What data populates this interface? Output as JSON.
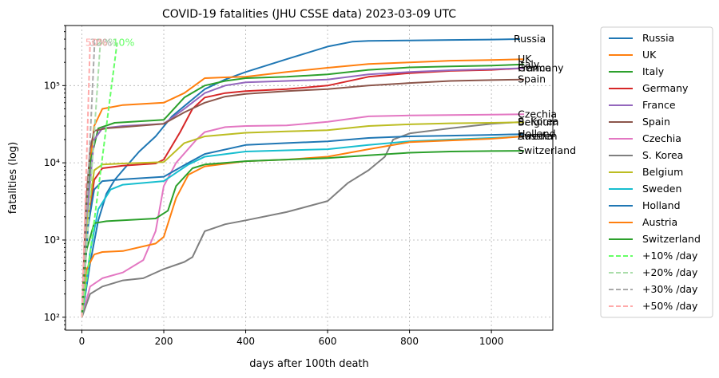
{
  "chart_data": {
    "type": "line",
    "title": "COVID-19 fatalities (JHU CSSE data) 2023-03-09 UTC",
    "xlabel": "days after 100th death",
    "ylabel": "fatalities (log)",
    "xlim": [
      -40,
      1150
    ],
    "ylim": [
      68,
      600000
    ],
    "yscale": "log",
    "grid": true,
    "legend_position": "outside-right",
    "x_ticks": [
      {
        "value": 0,
        "label": "0"
      },
      {
        "value": 200,
        "label": "200"
      },
      {
        "value": 400,
        "label": "400"
      },
      {
        "value": 600,
        "label": "600"
      },
      {
        "value": 800,
        "label": "800"
      },
      {
        "value": 1000,
        "label": "1000"
      }
    ],
    "y_ticks": [
      {
        "value": 100,
        "label": "10²"
      },
      {
        "value": 1000,
        "label": "10³"
      },
      {
        "value": 10000,
        "label": "10⁴"
      },
      {
        "value": 100000,
        "label": "10⁵"
      }
    ],
    "series": [
      {
        "name": "Russia",
        "label": "Russia",
        "color": "#1f77b4",
        "points": [
          [
            0,
            100
          ],
          [
            20,
            500
          ],
          [
            40,
            1800
          ],
          [
            60,
            4000
          ],
          [
            80,
            6000
          ],
          [
            100,
            8000
          ],
          [
            140,
            14000
          ],
          [
            180,
            22000
          ],
          [
            220,
            40000
          ],
          [
            260,
            60000
          ],
          [
            300,
            90000
          ],
          [
            350,
            120000
          ],
          [
            400,
            150000
          ],
          [
            500,
            220000
          ],
          [
            600,
            320000
          ],
          [
            660,
            370000
          ],
          [
            700,
            380000
          ],
          [
            800,
            385000
          ],
          [
            900,
            390000
          ],
          [
            1000,
            395000
          ],
          [
            1070,
            400000
          ]
        ]
      },
      {
        "name": "UK",
        "label": "UK",
        "color": "#ff7f0e",
        "points": [
          [
            0,
            100
          ],
          [
            10,
            2000
          ],
          [
            20,
            10000
          ],
          [
            30,
            30000
          ],
          [
            50,
            50000
          ],
          [
            100,
            56000
          ],
          [
            200,
            60000
          ],
          [
            250,
            80000
          ],
          [
            300,
            125000
          ],
          [
            350,
            128000
          ],
          [
            400,
            130000
          ],
          [
            500,
            150000
          ],
          [
            600,
            170000
          ],
          [
            700,
            190000
          ],
          [
            800,
            200000
          ],
          [
            900,
            210000
          ],
          [
            1000,
            215000
          ],
          [
            1080,
            220000
          ]
        ]
      },
      {
        "name": "Italy",
        "label": "Italy",
        "color": "#2ca02c",
        "points": [
          [
            0,
            100
          ],
          [
            10,
            1500
          ],
          [
            20,
            10000
          ],
          [
            40,
            28000
          ],
          [
            80,
            33000
          ],
          [
            200,
            36000
          ],
          [
            250,
            70000
          ],
          [
            300,
            100000
          ],
          [
            350,
            115000
          ],
          [
            400,
            125000
          ],
          [
            500,
            130000
          ],
          [
            600,
            140000
          ],
          [
            700,
            160000
          ],
          [
            800,
            172000
          ],
          [
            900,
            177000
          ],
          [
            1000,
            182000
          ],
          [
            1080,
            188000
          ]
        ]
      },
      {
        "name": "Germany",
        "label": "Germany",
        "color": "#d62728",
        "points": [
          [
            0,
            100
          ],
          [
            15,
            1500
          ],
          [
            30,
            6000
          ],
          [
            50,
            8500
          ],
          [
            100,
            9200
          ],
          [
            180,
            9800
          ],
          [
            200,
            11000
          ],
          [
            240,
            25000
          ],
          [
            270,
            50000
          ],
          [
            300,
            70000
          ],
          [
            350,
            80000
          ],
          [
            400,
            85000
          ],
          [
            500,
            90000
          ],
          [
            600,
            100000
          ],
          [
            700,
            130000
          ],
          [
            800,
            145000
          ],
          [
            900,
            155000
          ],
          [
            1000,
            160000
          ],
          [
            1080,
            168000
          ]
        ]
      },
      {
        "name": "France",
        "label": "France",
        "color": "#9467bd",
        "points": [
          [
            0,
            100
          ],
          [
            15,
            3000
          ],
          [
            30,
            20000
          ],
          [
            50,
            28000
          ],
          [
            100,
            30000
          ],
          [
            200,
            32000
          ],
          [
            250,
            50000
          ],
          [
            300,
            80000
          ],
          [
            350,
            100000
          ],
          [
            400,
            110000
          ],
          [
            500,
            115000
          ],
          [
            600,
            120000
          ],
          [
            700,
            140000
          ],
          [
            800,
            150000
          ],
          [
            900,
            158000
          ],
          [
            1000,
            163000
          ],
          [
            1080,
            168000
          ]
        ]
      },
      {
        "name": "Spain",
        "label": "Spain",
        "color": "#8c564b",
        "points": [
          [
            0,
            100
          ],
          [
            10,
            3000
          ],
          [
            20,
            15000
          ],
          [
            30,
            26000
          ],
          [
            60,
            28000
          ],
          [
            100,
            29000
          ],
          [
            200,
            32000
          ],
          [
            250,
            45000
          ],
          [
            300,
            60000
          ],
          [
            350,
            72000
          ],
          [
            400,
            78000
          ],
          [
            500,
            85000
          ],
          [
            600,
            90000
          ],
          [
            700,
            100000
          ],
          [
            800,
            108000
          ],
          [
            900,
            115000
          ],
          [
            1000,
            118000
          ],
          [
            1080,
            120000
          ]
        ]
      },
      {
        "name": "Czechia",
        "label": "Czechia",
        "color": "#e377c2",
        "points": [
          [
            0,
            100
          ],
          [
            20,
            250
          ],
          [
            50,
            320
          ],
          [
            100,
            380
          ],
          [
            150,
            550
          ],
          [
            180,
            1300
          ],
          [
            200,
            5000
          ],
          [
            230,
            10000
          ],
          [
            280,
            20000
          ],
          [
            300,
            25000
          ],
          [
            350,
            29000
          ],
          [
            400,
            30000
          ],
          [
            500,
            30500
          ],
          [
            600,
            34000
          ],
          [
            700,
            40000
          ],
          [
            800,
            41000
          ],
          [
            900,
            41500
          ],
          [
            1000,
            42000
          ],
          [
            1080,
            42500
          ]
        ]
      },
      {
        "name": "S. Korea",
        "label": "S. Korea",
        "color": "#7f7f7f",
        "points": [
          [
            0,
            100
          ],
          [
            20,
            200
          ],
          [
            50,
            250
          ],
          [
            100,
            300
          ],
          [
            150,
            320
          ],
          [
            200,
            420
          ],
          [
            250,
            520
          ],
          [
            270,
            600
          ],
          [
            300,
            1300
          ],
          [
            350,
            1600
          ],
          [
            400,
            1800
          ],
          [
            500,
            2300
          ],
          [
            600,
            3200
          ],
          [
            650,
            5500
          ],
          [
            700,
            8000
          ],
          [
            740,
            12000
          ],
          [
            760,
            20000
          ],
          [
            800,
            24000
          ],
          [
            900,
            28000
          ],
          [
            1000,
            32000
          ],
          [
            1080,
            34000
          ]
        ]
      },
      {
        "name": "Belgium",
        "label": "Belgium",
        "color": "#bcbd22",
        "points": [
          [
            0,
            100
          ],
          [
            15,
            2000
          ],
          [
            30,
            8000
          ],
          [
            50,
            9500
          ],
          [
            100,
            9800
          ],
          [
            200,
            10200
          ],
          [
            250,
            18000
          ],
          [
            300,
            22000
          ],
          [
            400,
            24500
          ],
          [
            500,
            25500
          ],
          [
            600,
            26500
          ],
          [
            700,
            30000
          ],
          [
            800,
            31500
          ],
          [
            900,
            32500
          ],
          [
            1000,
            33000
          ],
          [
            1080,
            33500
          ]
        ]
      },
      {
        "name": "Sweden",
        "label": "Sweden",
        "color": "#17becf",
        "points": [
          [
            0,
            100
          ],
          [
            20,
            700
          ],
          [
            40,
            2500
          ],
          [
            70,
            4500
          ],
          [
            100,
            5200
          ],
          [
            200,
            5800
          ],
          [
            260,
            9500
          ],
          [
            300,
            12000
          ],
          [
            400,
            14000
          ],
          [
            500,
            14500
          ],
          [
            600,
            15000
          ],
          [
            700,
            17000
          ],
          [
            800,
            19000
          ],
          [
            900,
            20000
          ],
          [
            1000,
            21000
          ],
          [
            1080,
            22000
          ]
        ]
      },
      {
        "name": "Holland",
        "label": "Holland",
        "color": "#1f77b4",
        "points": [
          [
            0,
            100
          ],
          [
            15,
            1500
          ],
          [
            30,
            4500
          ],
          [
            50,
            5800
          ],
          [
            100,
            6100
          ],
          [
            200,
            6600
          ],
          [
            260,
            10000
          ],
          [
            300,
            13000
          ],
          [
            400,
            17000
          ],
          [
            500,
            18000
          ],
          [
            600,
            19000
          ],
          [
            700,
            21000
          ],
          [
            800,
            22000
          ],
          [
            900,
            22500
          ],
          [
            1000,
            23000
          ],
          [
            1080,
            23500
          ]
        ]
      },
      {
        "name": "Austria",
        "label": "Austria",
        "color": "#ff7f0e",
        "points": [
          [
            0,
            100
          ],
          [
            10,
            400
          ],
          [
            30,
            650
          ],
          [
            50,
            700
          ],
          [
            100,
            720
          ],
          [
            180,
            900
          ],
          [
            200,
            1100
          ],
          [
            230,
            3500
          ],
          [
            260,
            7000
          ],
          [
            300,
            9000
          ],
          [
            400,
            10500
          ],
          [
            500,
            11000
          ],
          [
            600,
            12000
          ],
          [
            700,
            15000
          ],
          [
            800,
            18500
          ],
          [
            900,
            19500
          ],
          [
            1000,
            20500
          ],
          [
            1080,
            22000
          ]
        ]
      },
      {
        "name": "Switzerland",
        "label": "Switzerland",
        "color": "#2ca02c",
        "points": [
          [
            0,
            100
          ],
          [
            10,
            700
          ],
          [
            30,
            1650
          ],
          [
            60,
            1750
          ],
          [
            100,
            1800
          ],
          [
            180,
            1900
          ],
          [
            210,
            2400
          ],
          [
            230,
            5000
          ],
          [
            270,
            8500
          ],
          [
            300,
            9500
          ],
          [
            400,
            10500
          ],
          [
            500,
            11000
          ],
          [
            600,
            11500
          ],
          [
            700,
            12500
          ],
          [
            800,
            13500
          ],
          [
            900,
            14000
          ],
          [
            1000,
            14200
          ],
          [
            1080,
            14300
          ]
        ]
      },
      {
        "name": "+10% /day",
        "label": "10%",
        "color": "#66ff66",
        "dashed": true,
        "points": [
          [
            0,
            100
          ],
          [
            86,
            360000
          ]
        ]
      },
      {
        "name": "+20% /day",
        "label": "20%",
        "color": "#aaddaa",
        "dashed": true,
        "points": [
          [
            0,
            100
          ],
          [
            45,
            360000
          ]
        ]
      },
      {
        "name": "+30% /day",
        "label": "30%",
        "color": "#aaaaaa",
        "dashed": true,
        "points": [
          [
            0,
            100
          ],
          [
            31,
            360000
          ]
        ]
      },
      {
        "name": "+50% /day",
        "label": "50%",
        "color": "#ffaaaa",
        "dashed": true,
        "points": [
          [
            0,
            100
          ],
          [
            20,
            360000
          ]
        ]
      }
    ]
  }
}
